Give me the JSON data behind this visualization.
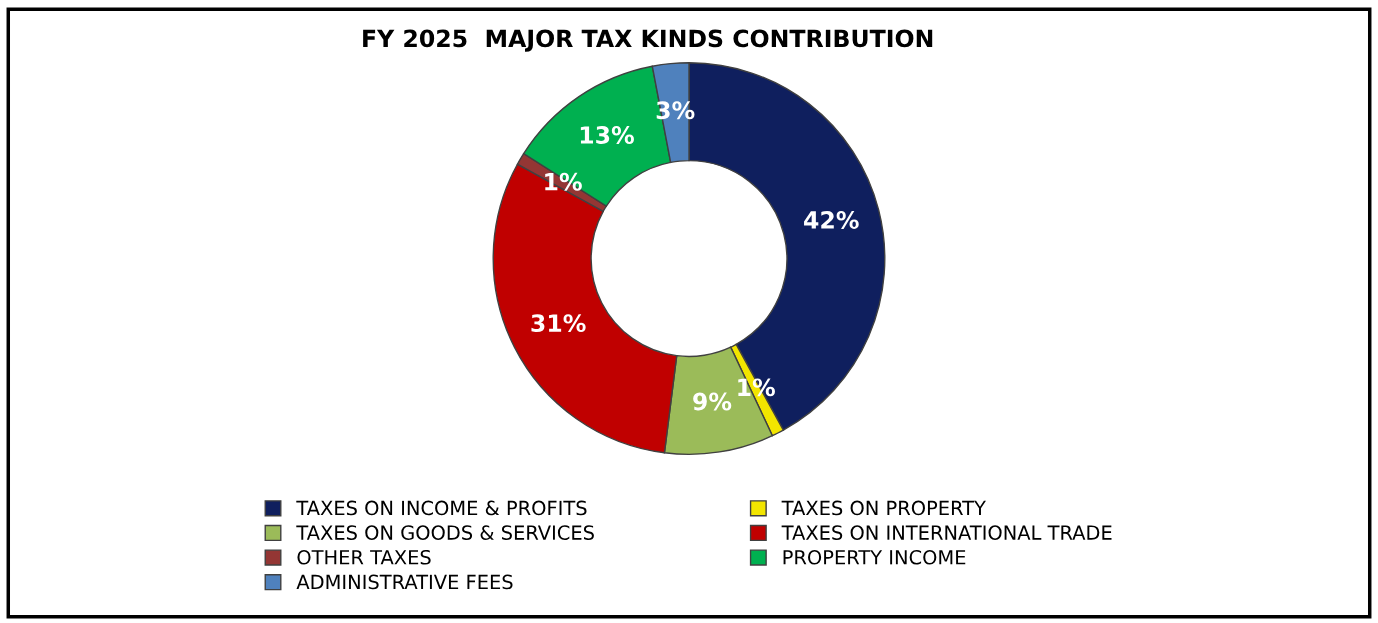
{
  "chart_data": {
    "type": "donut",
    "title": "FY 2025  MAJOR TAX KINDS CONTRIBUTION",
    "categories": [
      "TAXES ON INCOME & PROFITS",
      "TAXES ON PROPERTY",
      "TAXES ON GOODS & SERVICES",
      "TAXES ON INTERNATIONAL TRADE",
      "OTHER TAXES",
      "PROPERTY INCOME",
      "ADMINISTRATIVE FEES"
    ],
    "values": [
      42,
      1,
      9,
      31,
      1,
      13,
      3
    ],
    "colors": [
      "#0f1f5e",
      "#f2e500",
      "#9bbb59",
      "#c00000",
      "#943634",
      "#00b050",
      "#4f81bd"
    ],
    "value_labels": [
      "42%",
      "1%",
      "9%",
      "31%",
      "1%",
      "13%",
      "3%"
    ],
    "legend": "bottom"
  }
}
